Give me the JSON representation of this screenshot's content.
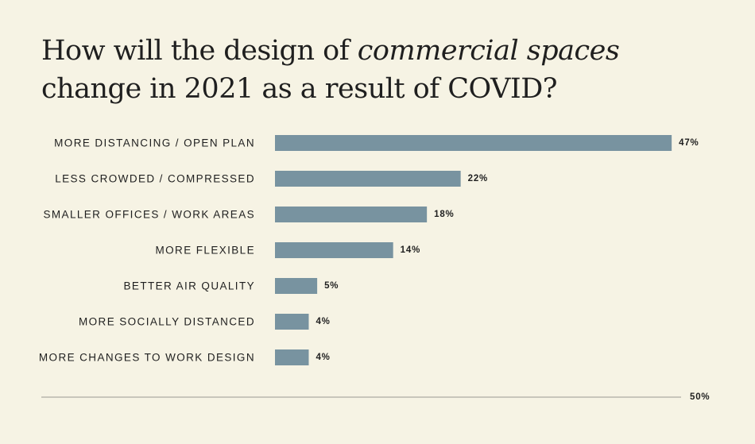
{
  "title": {
    "part1": "How will the design of ",
    "emphasis": "commercial spaces",
    "line2": "change in 2021 as a result of COVID?"
  },
  "colors": {
    "background": "#f6f3e4",
    "bar": "#7893a0",
    "axis": "#9a9a92",
    "text": "#1f1f1f"
  },
  "chart_data": {
    "type": "bar",
    "orientation": "horizontal",
    "categories": [
      "MORE DISTANCING / OPEN PLAN",
      "LESS CROWDED / COMPRESSED",
      "SMALLER OFFICES / WORK AREAS",
      "MORE FLEXIBLE",
      "BETTER AIR QUALITY",
      "MORE SOCIALLY DISTANCED",
      "MORE CHANGES TO WORK DESIGN"
    ],
    "values": [
      47,
      22,
      18,
      14,
      5,
      4,
      4
    ],
    "value_labels": [
      "47%",
      "22%",
      "18%",
      "14%",
      "5%",
      "4%",
      "4%"
    ],
    "xlim": [
      0,
      50
    ],
    "axis_max_label": "50%",
    "grid": false,
    "legend": "none"
  }
}
